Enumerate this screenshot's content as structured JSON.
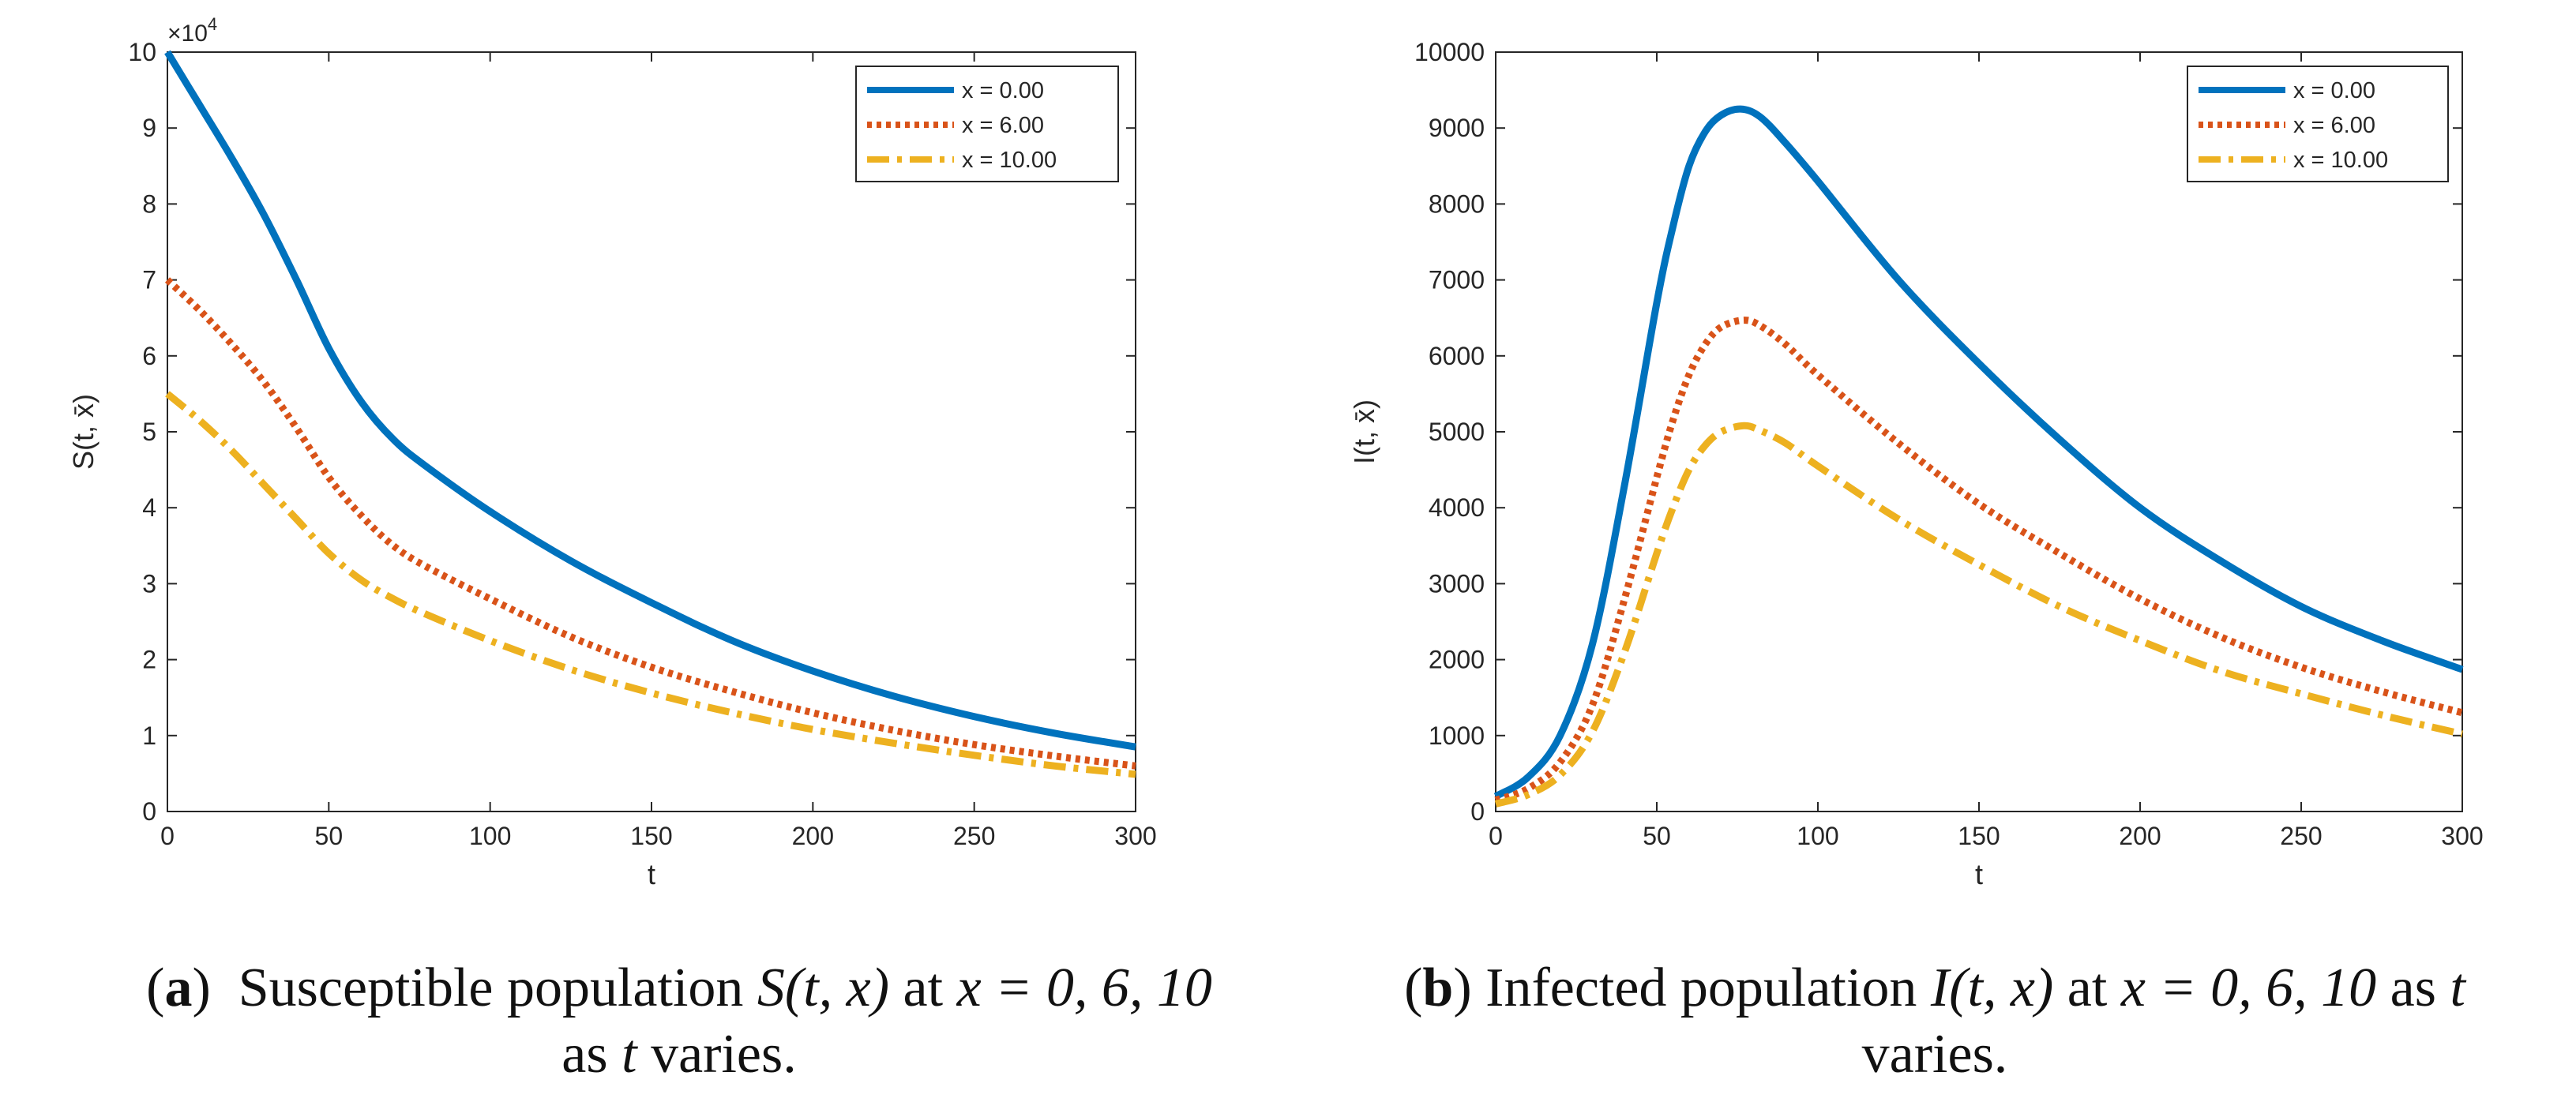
{
  "chart_data": [
    {
      "type": "line",
      "title": "",
      "xlabel": "t",
      "ylabel": "S(t, x̄)",
      "xlim": [
        0,
        300
      ],
      "ylim": [
        0,
        100000
      ],
      "x_ticks": [
        "0",
        "50",
        "100",
        "150",
        "200",
        "250",
        "300"
      ],
      "y_ticks": [
        "0",
        "1",
        "2",
        "3",
        "4",
        "5",
        "6",
        "7",
        "8",
        "9",
        "10"
      ],
      "y_exponent_label": "×10",
      "y_exponent_power": "4",
      "legend_position": "top-right",
      "legend": [
        "x = 0.00",
        "x = 6.00",
        "x = 10.00"
      ],
      "series": [
        {
          "name": "x = 0.00",
          "color": "#0072BD",
          "style": "solid",
          "x": [
            0,
            10,
            20,
            30,
            40,
            50,
            60,
            70,
            80,
            100,
            125,
            150,
            175,
            200,
            225,
            250,
            275,
            300
          ],
          "y": [
            100000,
            93000,
            86000,
            78500,
            70000,
            61000,
            54000,
            49000,
            45500,
            39500,
            33000,
            27500,
            22500,
            18500,
            15200,
            12500,
            10300,
            8500
          ]
        },
        {
          "name": "x = 6.00",
          "color": "#D95319",
          "style": "dotted",
          "x": [
            0,
            10,
            20,
            30,
            40,
            50,
            60,
            70,
            80,
            100,
            125,
            150,
            175,
            200,
            225,
            250,
            275,
            300
          ],
          "y": [
            70000,
            66000,
            61500,
            56500,
            50500,
            44000,
            39000,
            35000,
            32300,
            28000,
            23000,
            19000,
            15800,
            13000,
            10700,
            8800,
            7300,
            6000
          ]
        },
        {
          "name": "x = 10.00",
          "color": "#EDB120",
          "style": "dashdot",
          "x": [
            0,
            10,
            20,
            30,
            40,
            50,
            60,
            70,
            80,
            100,
            125,
            150,
            175,
            200,
            225,
            250,
            275,
            300
          ],
          "y": [
            55000,
            51500,
            47500,
            43000,
            38500,
            34000,
            30500,
            28000,
            26000,
            22500,
            18700,
            15600,
            13000,
            10800,
            9000,
            7400,
            6000,
            4900
          ]
        }
      ]
    },
    {
      "type": "line",
      "title": "",
      "xlabel": "t",
      "ylabel": "I(t, x̄)",
      "xlim": [
        0,
        300
      ],
      "ylim": [
        0,
        10000
      ],
      "x_ticks": [
        "0",
        "50",
        "100",
        "150",
        "200",
        "250",
        "300"
      ],
      "y_ticks": [
        "0",
        "1000",
        "2000",
        "3000",
        "4000",
        "5000",
        "6000",
        "7000",
        "8000",
        "9000",
        "10000"
      ],
      "legend_position": "top-right",
      "legend": [
        "x = 0.00",
        "x = 6.00",
        "x = 10.00"
      ],
      "series": [
        {
          "name": "x = 0.00",
          "color": "#0072BD",
          "style": "solid",
          "x": [
            0,
            10,
            20,
            30,
            40,
            50,
            55,
            60,
            65,
            70,
            76,
            82,
            90,
            100,
            125,
            150,
            175,
            200,
            225,
            250,
            275,
            300
          ],
          "y": [
            200,
            450,
            1000,
            2200,
            4300,
            6700,
            7700,
            8500,
            8950,
            9170,
            9250,
            9150,
            8800,
            8300,
            7000,
            5900,
            4900,
            4000,
            3300,
            2700,
            2250,
            1870
          ]
        },
        {
          "name": "x = 6.00",
          "color": "#D95319",
          "style": "dotted",
          "x": [
            0,
            10,
            20,
            30,
            40,
            50,
            55,
            60,
            65,
            70,
            77,
            82,
            90,
            100,
            125,
            150,
            175,
            200,
            225,
            250,
            275,
            300
          ],
          "y": [
            150,
            300,
            650,
            1400,
            2800,
            4400,
            5150,
            5750,
            6150,
            6380,
            6470,
            6400,
            6150,
            5750,
            4850,
            4050,
            3400,
            2800,
            2300,
            1900,
            1580,
            1300
          ]
        },
        {
          "name": "x = 10.00",
          "color": "#EDB120",
          "style": "dashdot",
          "x": [
            0,
            10,
            20,
            30,
            40,
            50,
            55,
            60,
            65,
            70,
            77,
            82,
            90,
            100,
            125,
            150,
            175,
            200,
            225,
            250,
            275,
            300
          ],
          "y": [
            100,
            220,
            480,
            1050,
            2100,
            3400,
            4000,
            4500,
            4820,
            5000,
            5080,
            5020,
            4850,
            4550,
            3850,
            3250,
            2700,
            2250,
            1850,
            1550,
            1270,
            1020
          ]
        }
      ]
    }
  ],
  "captions": {
    "a": {
      "label": "a",
      "line1": "Susceptible population",
      "fn_s": "S",
      "args": "(t, x)",
      "at": "at",
      "eq": "x = 0, 6, 10",
      "line2_pre": "as",
      "var_t": "t",
      "line2_post": "varies."
    },
    "b": {
      "label": "b",
      "line1": "Infected population",
      "fn_i": "I",
      "args": "(t, x)",
      "at": "at",
      "eq": "x = 0, 6, 10",
      "as": "as",
      "var_t": "t",
      "line2": "varies."
    }
  }
}
